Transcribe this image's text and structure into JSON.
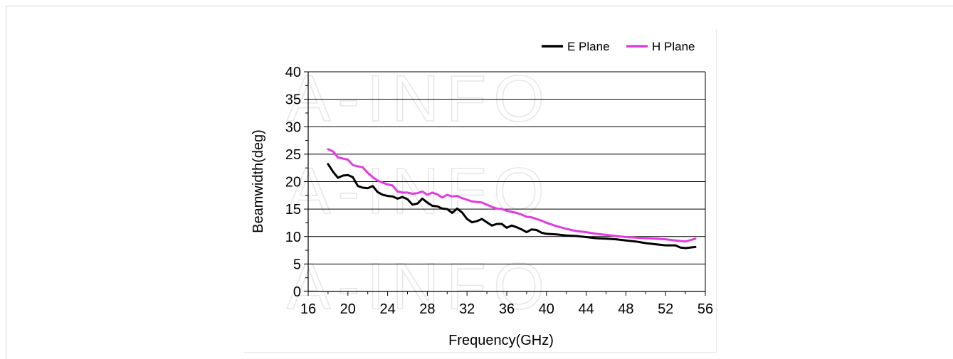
{
  "watermark_text": "A-INFO",
  "chart_data": {
    "type": "line",
    "xlabel": "Frequency(GHz)",
    "ylabel": "Beamwidth(deg)",
    "xlim": [
      16,
      56
    ],
    "ylim": [
      0,
      40
    ],
    "xticks": [
      "16",
      "20",
      "24",
      "28",
      "32",
      "36",
      "40",
      "44",
      "48",
      "52",
      "56"
    ],
    "yticks": [
      "0",
      "5",
      "10",
      "15",
      "20",
      "25",
      "30",
      "35",
      "40"
    ],
    "grid": "horizontal",
    "legend_position": "top-right",
    "series": [
      {
        "name": "E Plane",
        "color": "#000000",
        "x": [
          18,
          18.5,
          19,
          19.5,
          20,
          20.5,
          21,
          21.5,
          22,
          22.5,
          23,
          23.5,
          24,
          24.5,
          25,
          25.5,
          26,
          26.5,
          27,
          27.5,
          28,
          28.5,
          29,
          29.5,
          30,
          30.5,
          31,
          31.5,
          32,
          32.5,
          33,
          33.5,
          34,
          34.5,
          35,
          35.5,
          36,
          36.5,
          37,
          37.5,
          38,
          38.5,
          39,
          39.5,
          40,
          41,
          42,
          43,
          44,
          45,
          46,
          47,
          48,
          49,
          50,
          51,
          52,
          53,
          53.5,
          54,
          55
        ],
        "y": [
          23.2,
          21.8,
          20.7,
          21.1,
          21.2,
          20.8,
          19.2,
          18.9,
          18.8,
          19.2,
          18.1,
          17.6,
          17.4,
          17.3,
          16.9,
          17.2,
          16.8,
          15.8,
          16.0,
          16.9,
          16.2,
          15.6,
          15.5,
          15.1,
          15.0,
          14.3,
          15.1,
          14.4,
          13.2,
          12.6,
          12.8,
          13.2,
          12.6,
          12.0,
          12.3,
          12.3,
          11.6,
          12.0,
          11.7,
          11.3,
          10.8,
          11.3,
          11.2,
          10.7,
          10.5,
          10.4,
          10.2,
          10.1,
          9.9,
          9.7,
          9.6,
          9.5,
          9.3,
          9.1,
          8.8,
          8.6,
          8.4,
          8.4,
          8.0,
          7.9,
          8.1
        ]
      },
      {
        "name": "H Plane",
        "color": "#e03ce0",
        "x": [
          18,
          18.5,
          19,
          19.5,
          20,
          20.5,
          21,
          21.5,
          22,
          22.5,
          23,
          23.5,
          24,
          24.5,
          25,
          25.5,
          26,
          26.5,
          27,
          27.5,
          28,
          28.5,
          29,
          29.5,
          30,
          30.5,
          31,
          31.5,
          32,
          32.5,
          33,
          33.5,
          34,
          34.5,
          35,
          35.5,
          36,
          36.5,
          37,
          37.5,
          38,
          38.5,
          39,
          39.5,
          40,
          41,
          42,
          43,
          44,
          45,
          46,
          47,
          48,
          49,
          50,
          51,
          52,
          53,
          54,
          55
        ],
        "y": [
          25.9,
          25.5,
          24.4,
          24.2,
          24.0,
          23.0,
          22.8,
          22.6,
          21.6,
          20.8,
          20.2,
          19.8,
          19.5,
          19.3,
          18.2,
          18.0,
          18.0,
          17.8,
          17.9,
          18.2,
          17.6,
          18.0,
          17.7,
          17.1,
          17.6,
          17.3,
          17.4,
          17.0,
          16.7,
          16.4,
          16.3,
          16.2,
          15.8,
          15.4,
          15.1,
          15.0,
          14.7,
          14.5,
          14.3,
          14.0,
          13.6,
          13.5,
          13.2,
          12.9,
          12.5,
          11.9,
          11.4,
          11.0,
          10.8,
          10.5,
          10.3,
          10.1,
          9.9,
          9.8,
          9.7,
          9.6,
          9.5,
          9.3,
          9.1,
          9.6
        ]
      }
    ]
  }
}
